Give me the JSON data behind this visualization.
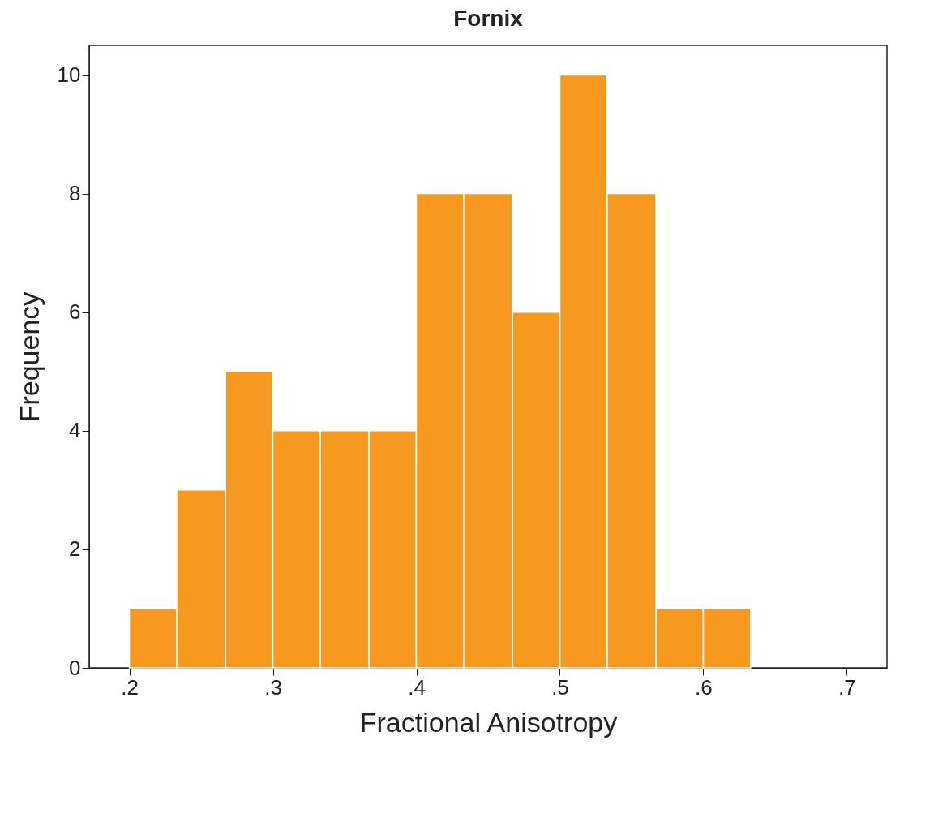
{
  "chart_data": {
    "type": "histogram",
    "title": "Fornix",
    "xlabel": "Fractional Anisotropy",
    "ylabel": "Frequency",
    "bins": [
      0.2,
      0.233,
      0.267,
      0.3,
      0.333,
      0.367,
      0.4,
      0.433,
      0.467,
      0.5,
      0.533,
      0.567,
      0.6,
      0.633
    ],
    "values": [
      1,
      3,
      5,
      4,
      4,
      4,
      8,
      8,
      6,
      10,
      8,
      1,
      1
    ],
    "color": "#f7991e",
    "xlim": [
      0.172,
      0.728
    ],
    "xticks": [
      {
        "value": 0.2,
        "label": ".2"
      },
      {
        "value": 0.3,
        "label": ".3"
      },
      {
        "value": 0.4,
        "label": ".4"
      },
      {
        "value": 0.5,
        "label": ".5"
      },
      {
        "value": 0.6,
        "label": ".6"
      },
      {
        "value": 0.7,
        "label": ".7"
      }
    ],
    "ylim": [
      0,
      10.5
    ],
    "yticks": [
      0,
      2,
      4,
      6,
      8,
      10
    ],
    "grid": false
  }
}
